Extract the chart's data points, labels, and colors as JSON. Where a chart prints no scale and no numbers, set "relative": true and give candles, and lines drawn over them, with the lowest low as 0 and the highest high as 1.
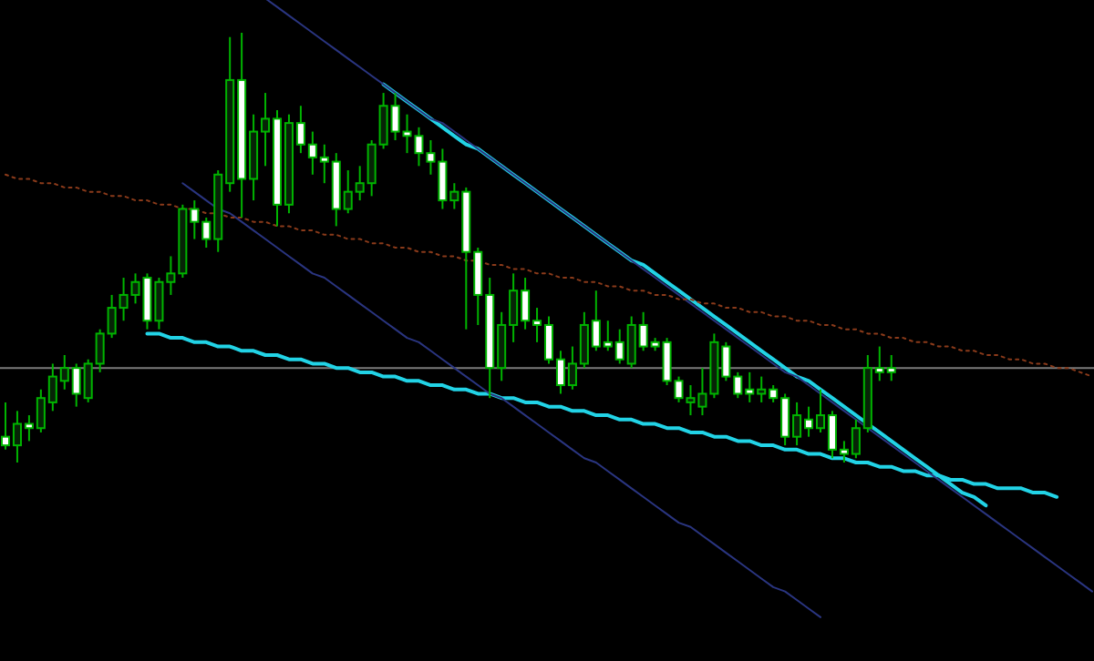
{
  "chart_data": {
    "type": "candlestick",
    "relative": true,
    "color": "#00b400",
    "categories": [
      null,
      null,
      null,
      null,
      null,
      null,
      null,
      null,
      null,
      null,
      null,
      null,
      null,
      null,
      null,
      null,
      null,
      null,
      null,
      null,
      null,
      null,
      null,
      null,
      null,
      null,
      null,
      null,
      null,
      null,
      null,
      null,
      null,
      null,
      null,
      null,
      null,
      null,
      null,
      null,
      null,
      null,
      null,
      null,
      null,
      null,
      null,
      null,
      null,
      null,
      null,
      null,
      null,
      null,
      null,
      null,
      null,
      null,
      null,
      null,
      null,
      null,
      null,
      null,
      null,
      null,
      null,
      null,
      null,
      null,
      null,
      null,
      null,
      null,
      null,
      null,
      null,
      null,
      null,
      null,
      null,
      null,
      null,
      null,
      null,
      null,
      null,
      null,
      null,
      null,
      null,
      null,
      null
    ],
    "ohlc": [
      [
        0.06,
        0.14,
        0.03,
        0.04
      ],
      [
        0.04,
        0.12,
        0,
        0.09
      ],
      [
        0.09,
        0.11,
        0.05,
        0.08
      ],
      [
        0.08,
        0.17,
        0.07,
        0.15
      ],
      [
        0.14,
        0.23,
        0.12,
        0.2
      ],
      [
        0.19,
        0.25,
        0.17,
        0.22
      ],
      [
        0.22,
        0.23,
        0.13,
        0.16
      ],
      [
        0.15,
        0.24,
        0.14,
        0.23
      ],
      [
        0.23,
        0.31,
        0.21,
        0.3
      ],
      [
        0.3,
        0.39,
        0.29,
        0.36
      ],
      [
        0.36,
        0.43,
        0.33,
        0.39
      ],
      [
        0.39,
        0.44,
        0.37,
        0.42
      ],
      [
        0.43,
        0.44,
        0.31,
        0.33
      ],
      [
        0.33,
        0.43,
        0.31,
        0.42
      ],
      [
        0.42,
        0.48,
        0.39,
        0.44
      ],
      [
        0.44,
        0.6,
        0.43,
        0.59
      ],
      [
        0.59,
        0.61,
        0.52,
        0.56
      ],
      [
        0.56,
        0.57,
        0.5,
        0.52
      ],
      [
        0.52,
        0.68,
        0.49,
        0.67
      ],
      [
        0.65,
        0.99,
        0.63,
        0.89
      ],
      [
        0.89,
        1,
        0.57,
        0.66
      ],
      [
        0.66,
        0.81,
        0.61,
        0.77
      ],
      [
        0.77,
        0.86,
        0.69,
        0.8
      ],
      [
        0.8,
        0.82,
        0.55,
        0.6
      ],
      [
        0.6,
        0.81,
        0.58,
        0.79
      ],
      [
        0.79,
        0.83,
        0.72,
        0.74
      ],
      [
        0.74,
        0.77,
        0.67,
        0.71
      ],
      [
        0.71,
        0.74,
        0.65,
        0.7
      ],
      [
        0.7,
        0.72,
        0.55,
        0.59
      ],
      [
        0.59,
        0.68,
        0.58,
        0.63
      ],
      [
        0.63,
        0.69,
        0.61,
        0.65
      ],
      [
        0.65,
        0.75,
        0.62,
        0.74
      ],
      [
        0.74,
        0.86,
        0.73,
        0.83
      ],
      [
        0.83,
        0.86,
        0.75,
        0.77
      ],
      [
        0.77,
        0.81,
        0.72,
        0.76
      ],
      [
        0.76,
        0.78,
        0.69,
        0.72
      ],
      [
        0.72,
        0.75,
        0.67,
        0.7
      ],
      [
        0.7,
        0.73,
        0.59,
        0.61
      ],
      [
        0.61,
        0.65,
        0.59,
        0.63
      ],
      [
        0.63,
        0.64,
        0.31,
        0.49
      ],
      [
        0.49,
        0.5,
        0.32,
        0.39
      ],
      [
        0.39,
        0.43,
        0.15,
        0.22
      ],
      [
        0.22,
        0.35,
        0.19,
        0.32
      ],
      [
        0.32,
        0.44,
        0.28,
        0.4
      ],
      [
        0.4,
        0.43,
        0.31,
        0.33
      ],
      [
        0.33,
        0.36,
        0.28,
        0.32
      ],
      [
        0.32,
        0.34,
        0.23,
        0.24
      ],
      [
        0.24,
        0.26,
        0.16,
        0.18
      ],
      [
        0.18,
        0.27,
        0.17,
        0.23
      ],
      [
        0.23,
        0.35,
        0.22,
        0.32
      ],
      [
        0.33,
        0.4,
        0.26,
        0.27
      ],
      [
        0.28,
        0.33,
        0.26,
        0.27
      ],
      [
        0.28,
        0.31,
        0.23,
        0.24
      ],
      [
        0.23,
        0.34,
        0.22,
        0.32
      ],
      [
        0.32,
        0.35,
        0.26,
        0.27
      ],
      [
        0.28,
        0.29,
        0.26,
        0.27
      ],
      [
        0.28,
        0.29,
        0.18,
        0.19
      ],
      [
        0.19,
        0.2,
        0.14,
        0.15
      ],
      [
        0.14,
        0.18,
        0.11,
        0.15
      ],
      [
        0.13,
        0.22,
        0.11,
        0.16
      ],
      [
        0.16,
        0.3,
        0.15,
        0.28
      ],
      [
        0.27,
        0.28,
        0.19,
        0.2
      ],
      [
        0.2,
        0.21,
        0.15,
        0.16
      ],
      [
        0.17,
        0.21,
        0.14,
        0.16
      ],
      [
        0.16,
        0.2,
        0.14,
        0.17
      ],
      [
        0.17,
        0.18,
        0.14,
        0.15
      ],
      [
        0.15,
        0.16,
        0.04,
        0.06
      ],
      [
        0.06,
        0.14,
        0.04,
        0.11
      ],
      [
        0.1,
        0.13,
        0.06,
        0.08
      ],
      [
        0.08,
        0.17,
        0.07,
        0.11
      ],
      [
        0.11,
        0.12,
        0.01,
        0.03
      ],
      [
        0.03,
        0.05,
        0,
        0.02
      ],
      [
        0.02,
        0.1,
        0.01,
        0.08
      ],
      [
        0.08,
        0.25,
        0.07,
        0.22
      ],
      [
        0.22,
        0.27,
        0.19,
        0.21
      ],
      [
        0.22,
        0.25,
        0.19,
        0.21
      ],
      null,
      null,
      null,
      null,
      null,
      null,
      null,
      null,
      null,
      null,
      null,
      null,
      null,
      null,
      null,
      null,
      null
    ],
    "series": [
      {
        "type": "line",
        "color": "#22d3e6",
        "line_style": "solid",
        "values": [
          null,
          null,
          null,
          null,
          null,
          null,
          null,
          null,
          null,
          null,
          null,
          null,
          null,
          null,
          null,
          null,
          null,
          null,
          null,
          null,
          null,
          null,
          null,
          null,
          null,
          null,
          null,
          null,
          null,
          null,
          null,
          null,
          0.88,
          0.86,
          0.84,
          0.82,
          0.8,
          0.78,
          0.76,
          0.74,
          0.73,
          0.71,
          0.69,
          0.67,
          0.65,
          0.63,
          0.61,
          0.59,
          0.57,
          0.55,
          0.53,
          0.51,
          0.49,
          0.47,
          0.46,
          0.44,
          0.42,
          0.4,
          0.38,
          0.36,
          0.34,
          0.32,
          0.3,
          0.28,
          0.26,
          0.24,
          0.22,
          0.2,
          0.19,
          0.17,
          0.15,
          0.13,
          0.11,
          0.09,
          0.07,
          0.05,
          0.03,
          0.01,
          -0.01,
          -0.03,
          -0.05,
          -0.07,
          -0.08,
          -0.1,
          null,
          null,
          null,
          null,
          null,
          null,
          null,
          null,
          null
        ]
      },
      {
        "type": "line",
        "color": "#22d3e6",
        "line_style": "solid",
        "values": [
          null,
          null,
          null,
          null,
          null,
          null,
          null,
          null,
          null,
          null,
          null,
          null,
          0.3,
          0.3,
          0.29,
          0.29,
          0.28,
          0.28,
          0.27,
          0.27,
          0.26,
          0.26,
          0.25,
          0.25,
          0.24,
          0.24,
          0.23,
          0.23,
          0.22,
          0.22,
          0.21,
          0.21,
          0.2,
          0.2,
          0.19,
          0.19,
          0.18,
          0.18,
          0.17,
          0.17,
          0.16,
          0.16,
          0.15,
          0.15,
          0.14,
          0.14,
          0.13,
          0.13,
          0.12,
          0.12,
          0.11,
          0.11,
          0.1,
          0.1,
          0.09,
          0.09,
          0.08,
          0.08,
          0.07,
          0.07,
          0.06,
          0.06,
          0.05,
          0.05,
          0.04,
          0.04,
          0.03,
          0.03,
          0.02,
          0.02,
          0.01,
          0.01,
          0,
          0,
          -0.01,
          -0.01,
          -0.02,
          -0.02,
          -0.03,
          -0.03,
          -0.04,
          -0.04,
          -0.05,
          -0.05,
          -0.06,
          -0.06,
          -0.06,
          -0.07,
          -0.07,
          -0.08,
          null,
          null,
          null
        ]
      },
      {
        "type": "line",
        "color": "#2a3580",
        "line_style": "solid",
        "values": [
          null,
          null,
          null,
          null,
          null,
          null,
          null,
          null,
          null,
          null,
          null,
          null,
          null,
          null,
          null,
          null,
          null,
          null,
          null,
          null,
          null,
          null,
          1.08,
          1.06,
          1.04,
          1.02,
          1,
          0.98,
          0.96,
          0.94,
          0.92,
          0.9,
          0.88,
          0.86,
          0.84,
          0.82,
          0.8,
          0.79,
          0.77,
          0.75,
          0.73,
          0.71,
          0.69,
          0.67,
          0.65,
          0.63,
          0.61,
          0.59,
          0.57,
          0.55,
          0.53,
          0.51,
          0.49,
          0.47,
          0.45,
          0.43,
          0.41,
          0.39,
          0.37,
          0.35,
          0.33,
          0.31,
          0.29,
          0.27,
          0.25,
          0.23,
          0.21,
          0.2,
          0.18,
          0.16,
          0.14,
          0.12,
          0.1,
          0.08,
          0.06,
          0.04,
          0.02,
          0,
          -0.02,
          -0.04,
          -0.06,
          -0.08,
          -0.1,
          -0.12,
          -0.14,
          -0.16,
          -0.18,
          -0.2,
          -0.22,
          -0.24,
          -0.26,
          -0.28,
          -0.3
        ]
      },
      {
        "type": "line",
        "color": "#2a3580",
        "line_style": "solid",
        "values": [
          null,
          null,
          null,
          null,
          null,
          null,
          null,
          null,
          null,
          null,
          null,
          null,
          null,
          null,
          null,
          0.65,
          0.63,
          0.61,
          0.59,
          0.58,
          0.56,
          0.54,
          0.52,
          0.5,
          0.48,
          0.46,
          0.44,
          0.43,
          0.41,
          0.39,
          0.37,
          0.35,
          0.33,
          0.31,
          0.29,
          0.28,
          0.26,
          0.24,
          0.22,
          0.2,
          0.18,
          0.16,
          0.15,
          0.13,
          0.11,
          0.09,
          0.07,
          0.05,
          0.03,
          0.01,
          0,
          -0.02,
          -0.04,
          -0.06,
          -0.08,
          -0.1,
          -0.12,
          -0.14,
          -0.15,
          -0.17,
          -0.19,
          -0.21,
          -0.23,
          -0.25,
          -0.27,
          -0.29,
          -0.3,
          -0.32,
          -0.34,
          -0.36,
          null,
          null,
          null,
          null,
          null,
          null,
          null,
          null,
          null,
          null,
          null,
          null,
          null,
          null,
          null,
          null,
          null,
          null,
          null,
          null,
          null,
          null,
          null
        ]
      },
      {
        "type": "line",
        "color": "#8a3a1a",
        "line_style": "dotted",
        "values": [
          0.67,
          0.66,
          0.66,
          0.65,
          0.65,
          0.64,
          0.64,
          0.63,
          0.63,
          0.62,
          0.62,
          0.61,
          0.61,
          0.6,
          0.6,
          0.59,
          0.59,
          0.58,
          0.58,
          0.57,
          0.57,
          0.56,
          0.56,
          0.55,
          0.55,
          0.54,
          0.54,
          0.53,
          0.53,
          0.52,
          0.52,
          0.51,
          0.51,
          0.5,
          0.5,
          0.49,
          0.49,
          0.48,
          0.48,
          0.47,
          0.47,
          0.46,
          0.46,
          0.45,
          0.45,
          0.44,
          0.44,
          0.43,
          0.43,
          0.42,
          0.42,
          0.41,
          0.41,
          0.4,
          0.4,
          0.39,
          0.39,
          0.38,
          0.38,
          0.37,
          0.37,
          0.36,
          0.36,
          0.35,
          0.35,
          0.34,
          0.34,
          0.33,
          0.33,
          0.32,
          0.32,
          0.31,
          0.31,
          0.3,
          0.3,
          0.29,
          0.29,
          0.28,
          0.28,
          0.27,
          0.27,
          0.26,
          0.26,
          0.25,
          0.25,
          0.24,
          0.24,
          0.23,
          0.23,
          0.22,
          0.22,
          0.21,
          0.2
        ]
      }
    ],
    "ref_lines": [
      {
        "axis": "y",
        "value": 0.22,
        "color": "#7a7a7a"
      }
    ]
  }
}
